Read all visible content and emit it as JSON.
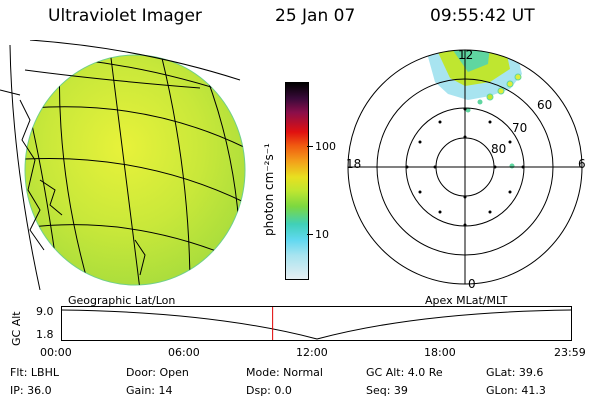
{
  "header": {
    "title": "Ultraviolet Imager",
    "date": "25 Jan 07",
    "time": "09:55:42 UT"
  },
  "colorbar": {
    "unit_label": "photon cm⁻²s⁻¹",
    "ticks": [
      "100",
      "10"
    ]
  },
  "polar": {
    "mlt_labels": {
      "top": "12",
      "left": "18",
      "right": "6",
      "bottom": "0"
    },
    "lat_labels": [
      "60",
      "70",
      "80"
    ]
  },
  "projection_labels": {
    "left": "Geographic Lat/Lon",
    "right": "Apex MLat/MLT"
  },
  "altitude_plot": {
    "ylabel": "GC Alt",
    "yticks": [
      "9.0",
      "1.8"
    ],
    "xticks": [
      "00:00",
      "06:00",
      "12:00",
      "18:00",
      "23:59"
    ],
    "current_time_fraction": 0.413,
    "min_time_fraction": 0.5
  },
  "status": {
    "row1": {
      "filter": "Flt: LBHL",
      "door": "Door: Open",
      "mode": "Mode: Normal",
      "gc_alt": "GC Alt: 4.0 Re",
      "glat": "GLat:  39.6"
    },
    "row2": {
      "ip": "IP: 36.0",
      "gain": "Gain: 14",
      "dsp": "Dsp:      0.0",
      "seq": "Seq: 39",
      "glon": "GLon:  41.3"
    }
  },
  "colors": {
    "disk_green": "#b4e03a",
    "disk_yellow": "#dfee3a",
    "aurora_cyan": "#5fd6e6",
    "time_marker": "#e00000"
  }
}
